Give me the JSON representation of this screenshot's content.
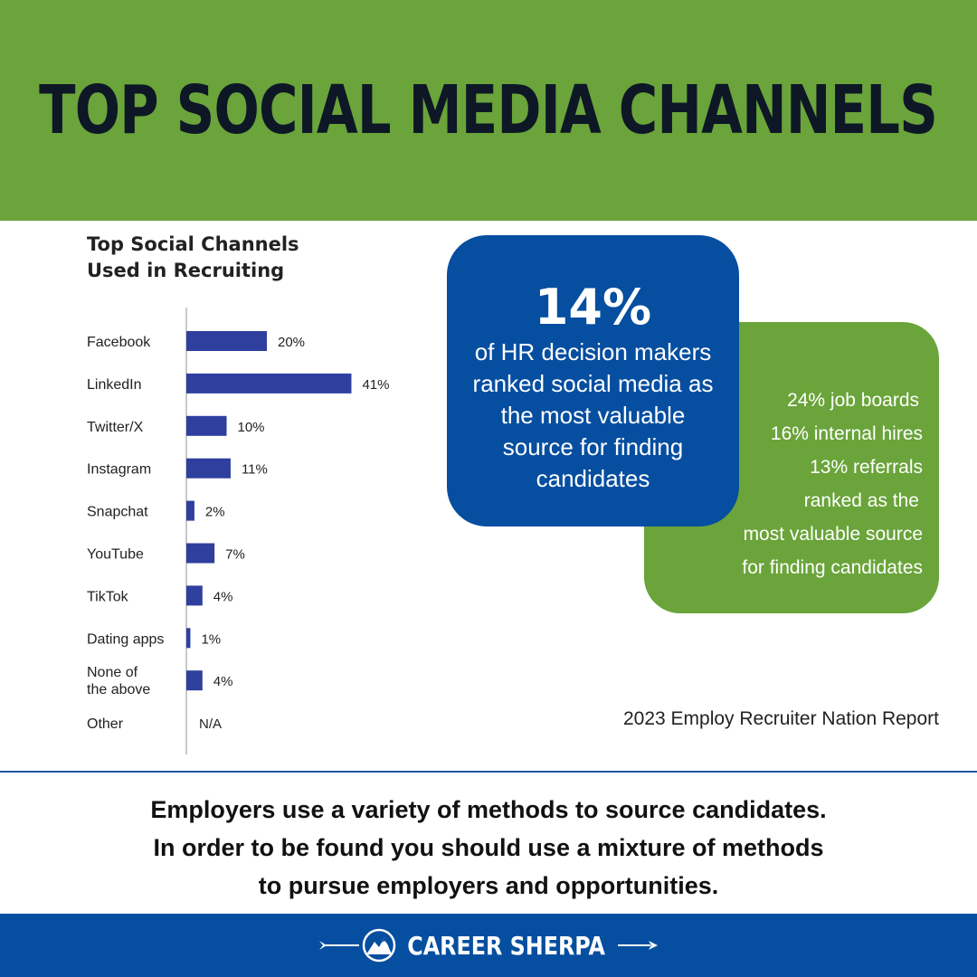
{
  "header": {
    "title": "TOP SOCIAL MEDIA CHANNELS"
  },
  "chart_data": {
    "type": "bar",
    "orientation": "horizontal",
    "title_lines": [
      "Top Social Channels",
      "Used in Recruiting"
    ],
    "categories": [
      [
        "Facebook"
      ],
      [
        "LinkedIn"
      ],
      [
        "Twitter/X"
      ],
      [
        "Instagram"
      ],
      [
        "Snapchat"
      ],
      [
        "YouTube"
      ],
      [
        "TikTok"
      ],
      [
        "Dating apps"
      ],
      [
        "None of",
        "the above"
      ],
      [
        "Other"
      ]
    ],
    "values": [
      20,
      41,
      10,
      11,
      2,
      7,
      4,
      1,
      4,
      null
    ],
    "value_labels": [
      "20%",
      "41%",
      "10%",
      "11%",
      "2%",
      "7%",
      "4%",
      "1%",
      "4%",
      "N/A"
    ],
    "unit": "%",
    "bar_color": "#2e3f9e",
    "grid": false,
    "legend": "none"
  },
  "highlight": {
    "stat": "14%",
    "lines": [
      "of HR decision makers",
      "ranked social media as",
      "the most valuable",
      "source for finding",
      "candidates"
    ],
    "color": "#064ea0"
  },
  "secondary": {
    "lines": [
      "24% job boards",
      "16% internal hires",
      "13% referrals",
      "ranked as the",
      "most valuable source",
      "for finding candidates"
    ],
    "color": "#6aa43a"
  },
  "source": "2023 Employ Recruiter Nation Report",
  "message": {
    "lines": [
      "Employers use a variety of methods to source candidates.",
      "In order to be found you should use a mixture of methods",
      "to pursue employers and opportunities."
    ]
  },
  "footer": {
    "brand": "CAREER SHERPA",
    "icon": "mountain-logo-icon"
  }
}
